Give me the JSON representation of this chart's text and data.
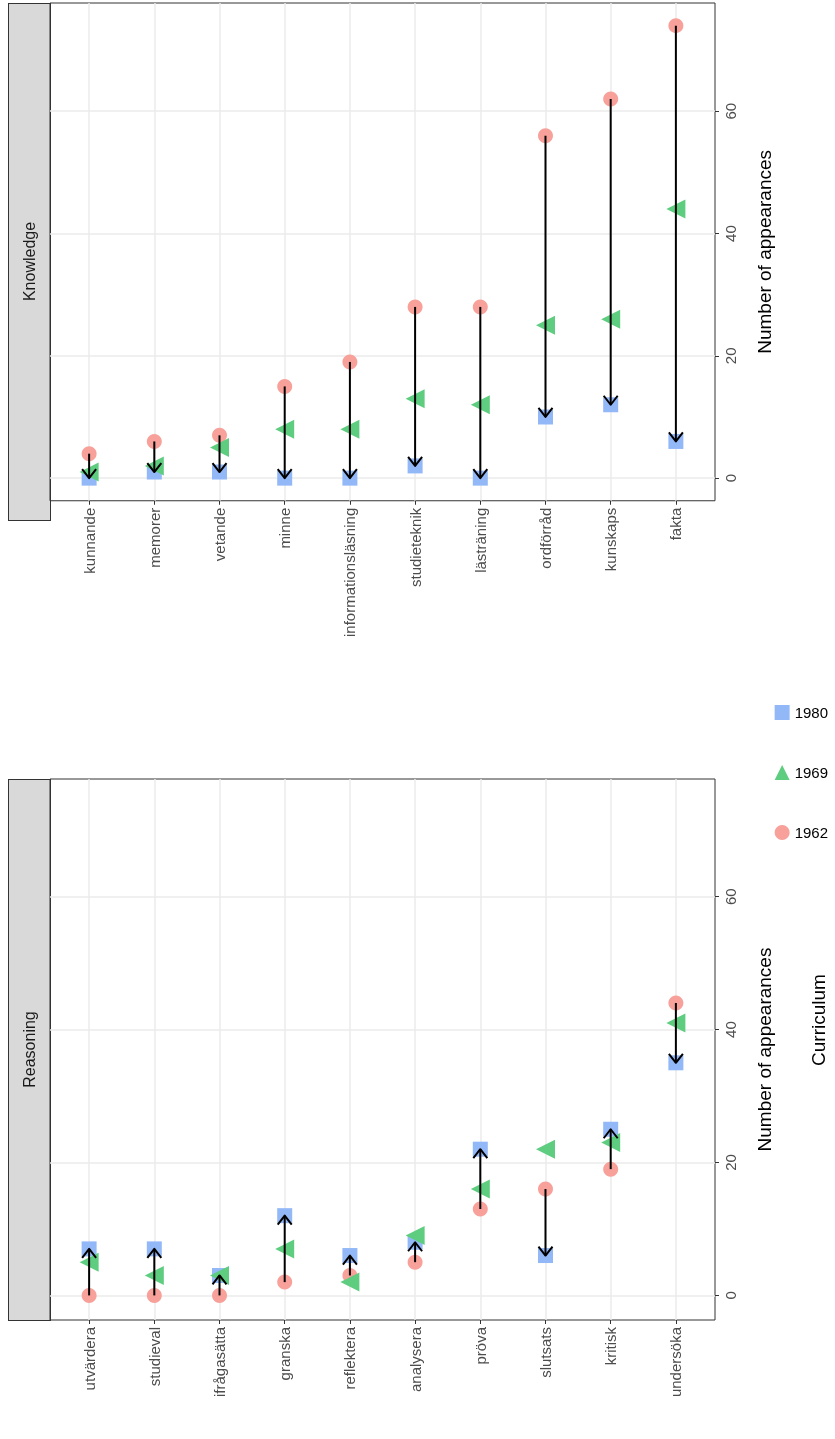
{
  "chart_data": [
    {
      "type": "scatter",
      "title": "Knowledge",
      "ylabel": "Number of appearances",
      "categories": [
        "kunnande",
        "memorer",
        "vetande",
        "minne",
        "informationsläsning",
        "studieteknik",
        "lästräning",
        "ordförråd",
        "kunskaps",
        "fakta"
      ],
      "series": [
        {
          "color": "#f8a19a",
          "marker": "circle",
          "values": [
            4,
            6,
            7,
            15,
            19,
            28,
            28,
            56,
            62,
            74
          ]
        },
        {
          "color": "#5fcd7f",
          "marker": "triangle",
          "values": [
            1,
            2,
            5,
            8,
            8,
            13,
            12,
            25,
            26,
            44
          ]
        },
        {
          "color": "#93b8f8",
          "marker": "square",
          "values": [
            0,
            1,
            1,
            0,
            0,
            2,
            0,
            10,
            12,
            6
          ]
        }
      ],
      "ylim": [
        -3.7,
        77.7
      ],
      "yticks": [
        0,
        20,
        40,
        60
      ],
      "grid": true,
      "legend": false
    },
    {
      "type": "scatter",
      "title": "Reasoning",
      "ylabel": "Number of appearances",
      "categories": [
        "utvärdera",
        "studieval",
        "ifrågasätta",
        "granska",
        "reflektera",
        "analysera",
        "pröva",
        "slutsats",
        "kritisk",
        "undersöka"
      ],
      "series": [
        {
          "name": "1962",
          "color": "#f8a19a",
          "marker": "circle",
          "values": [
            0,
            0,
            0,
            2,
            3,
            5,
            13,
            16,
            19,
            44
          ]
        },
        {
          "name": "1969",
          "color": "#5fcd7f",
          "marker": "triangle",
          "values": [
            5,
            3,
            3,
            7,
            2,
            9,
            16,
            22,
            23,
            41
          ]
        },
        {
          "name": "1980",
          "color": "#93b8f8",
          "marker": "square",
          "values": [
            7,
            7,
            3,
            12,
            6,
            8,
            22,
            6,
            25,
            35
          ]
        }
      ],
      "ylim": [
        -3.7,
        77.7
      ],
      "yticks": [
        0,
        20,
        40,
        60
      ],
      "grid": true,
      "legend": "right",
      "legend_title": "Curriculum"
    }
  ]
}
